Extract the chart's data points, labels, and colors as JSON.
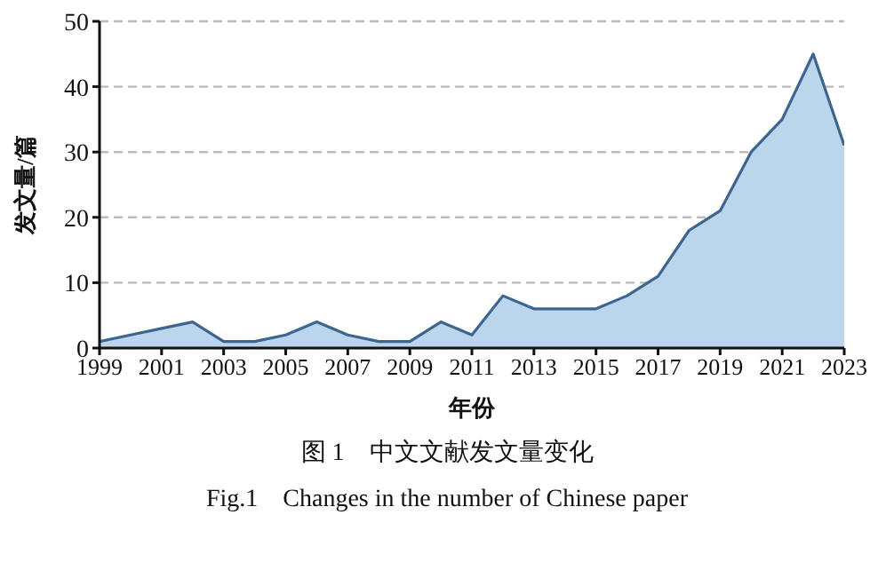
{
  "chart_data": {
    "type": "area",
    "xlabel": "年份",
    "ylabel": "发文量/篇",
    "annotations": [
      "图 1　中文文献发文量变化",
      "Fig.1　Changes in the number of Chinese paper"
    ],
    "x": [
      1999,
      2000,
      2001,
      2002,
      2003,
      2004,
      2005,
      2006,
      2007,
      2008,
      2009,
      2010,
      2011,
      2012,
      2013,
      2014,
      2015,
      2016,
      2017,
      2018,
      2019,
      2020,
      2021,
      2022,
      2023
    ],
    "series": [
      {
        "color": "#3d6590",
        "values": [
          1,
          2,
          3,
          4,
          1,
          1,
          2,
          4,
          2,
          1,
          1,
          4,
          2,
          8,
          6,
          6,
          6,
          8,
          11,
          18,
          21,
          30,
          35,
          45,
          31
        ]
      }
    ],
    "xlim": [
      1999,
      2023
    ],
    "xticks": [
      1999,
      2001,
      2003,
      2005,
      2007,
      2009,
      2011,
      2013,
      2015,
      2017,
      2019,
      2021,
      2023
    ],
    "ylim": [
      0,
      50
    ],
    "yticks": [
      0,
      10,
      20,
      30,
      40,
      50
    ],
    "grid": "y",
    "marker": "none"
  }
}
